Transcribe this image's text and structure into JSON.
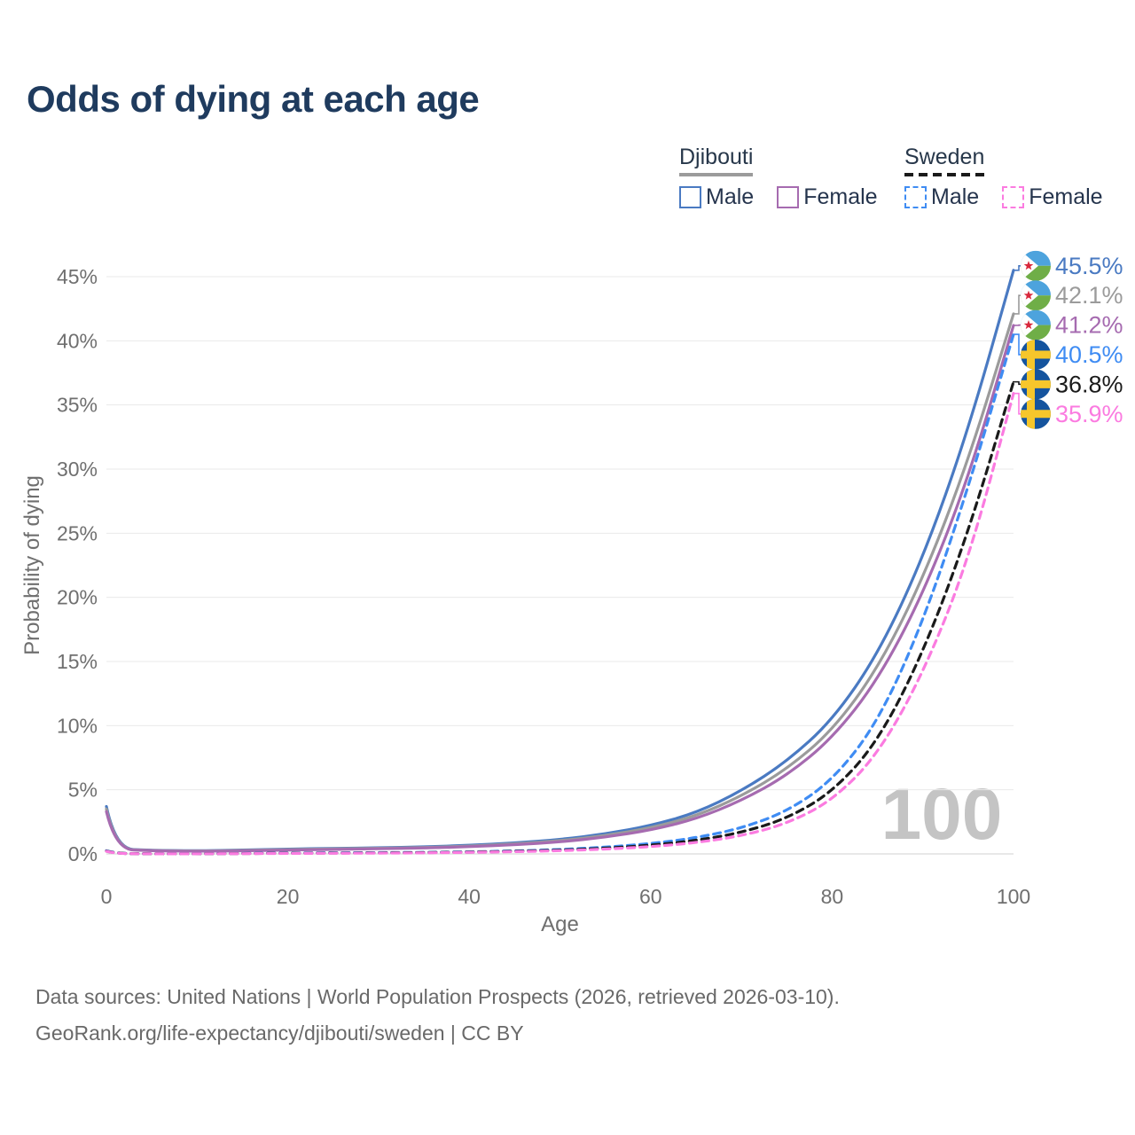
{
  "header": {
    "title": "Odds of dying at each age"
  },
  "legend": {
    "groups": [
      {
        "id": "djibouti",
        "label": "Djibouti",
        "line_style": "solid",
        "underline_color": "#9b9b9b",
        "items": [
          {
            "label": "Male",
            "color": "#4a7ac2",
            "dashed": false
          },
          {
            "label": "Female",
            "color": "#a66bb0",
            "dashed": false
          }
        ]
      },
      {
        "id": "sweden",
        "label": "Sweden",
        "line_style": "dashed",
        "underline_color": "#1a1a1a",
        "items": [
          {
            "label": "Male",
            "color": "#3f8cf3",
            "dashed": true
          },
          {
            "label": "Female",
            "color": "#fb7be0",
            "dashed": true
          }
        ]
      }
    ]
  },
  "chart_data": {
    "type": "line",
    "title": "Odds of dying at each age",
    "xlabel": "Age",
    "ylabel": "Probability of dying",
    "xlim": [
      0,
      100
    ],
    "ylim": [
      0,
      45
    ],
    "x_ticks": [
      0,
      20,
      40,
      60,
      80,
      100
    ],
    "y_ticks_percent": [
      0,
      5,
      10,
      15,
      20,
      25,
      30,
      35,
      40,
      45
    ],
    "grid": true,
    "watermark": "100",
    "legend_position": "top-right",
    "ages": [
      0,
      1,
      5,
      10,
      15,
      20,
      25,
      30,
      35,
      40,
      45,
      50,
      55,
      60,
      65,
      70,
      75,
      80,
      85,
      90,
      95,
      100
    ],
    "series": [
      {
        "id": "djibouti-male",
        "name": "Djibouti Male",
        "country": "Djibouti",
        "sex": "Male",
        "color": "#4a7ac2",
        "dashed": false,
        "flag": "djibouti",
        "end_label": "45.5%",
        "values": [
          3.7,
          0.4,
          0.28,
          0.24,
          0.3,
          0.38,
          0.43,
          0.48,
          0.55,
          0.67,
          0.85,
          1.12,
          1.55,
          2.2,
          3.2,
          4.9,
          7.2,
          10.4,
          15.5,
          23.0,
          33.0,
          45.5
        ]
      },
      {
        "id": "djibouti-both-sexes",
        "name": "Djibouti Both sexes",
        "country": "Djibouti",
        "sex": "Both",
        "color": "#9b9b9b",
        "dashed": false,
        "flag": "djibouti",
        "end_label": "42.1%",
        "values": [
          3.5,
          0.38,
          0.26,
          0.22,
          0.27,
          0.34,
          0.39,
          0.44,
          0.5,
          0.61,
          0.78,
          1.02,
          1.42,
          2.02,
          2.95,
          4.5,
          6.6,
          9.6,
          14.4,
          21.4,
          30.6,
          42.1
        ]
      },
      {
        "id": "djibouti-female",
        "name": "Djibouti Female",
        "country": "Djibouti",
        "sex": "Female",
        "color": "#a66bb0",
        "dashed": false,
        "flag": "djibouti",
        "end_label": "41.2%",
        "values": [
          3.3,
          0.36,
          0.24,
          0.2,
          0.24,
          0.3,
          0.35,
          0.4,
          0.46,
          0.56,
          0.71,
          0.93,
          1.3,
          1.85,
          2.72,
          4.15,
          6.1,
          9.0,
          13.5,
          20.2,
          29.2,
          41.2
        ]
      },
      {
        "id": "sweden-male",
        "name": "Sweden Male",
        "country": "Sweden",
        "sex": "Male",
        "color": "#3f8cf3",
        "dashed": true,
        "flag": "sweden",
        "end_label": "40.5%",
        "values": [
          0.25,
          0.03,
          0.01,
          0.01,
          0.04,
          0.07,
          0.09,
          0.1,
          0.12,
          0.16,
          0.23,
          0.34,
          0.52,
          0.8,
          1.25,
          2.0,
          3.3,
          5.7,
          10.2,
          18.0,
          28.5,
          40.5
        ]
      },
      {
        "id": "sweden-both-sexes",
        "name": "Sweden Both sexes",
        "country": "Sweden",
        "sex": "Both",
        "color": "#1a1a1a",
        "dashed": true,
        "flag": "sweden",
        "end_label": "36.8%",
        "values": [
          0.22,
          0.03,
          0.01,
          0.01,
          0.03,
          0.05,
          0.07,
          0.08,
          0.1,
          0.14,
          0.2,
          0.29,
          0.44,
          0.67,
          1.04,
          1.66,
          2.75,
          4.8,
          8.7,
          15.6,
          25.0,
          36.8
        ]
      },
      {
        "id": "sweden-female",
        "name": "Sweden Female",
        "country": "Sweden",
        "sex": "Female",
        "color": "#fb7be0",
        "dashed": true,
        "flag": "sweden",
        "end_label": "35.9%",
        "values": [
          0.2,
          0.02,
          0.01,
          0.01,
          0.02,
          0.04,
          0.05,
          0.06,
          0.08,
          0.12,
          0.17,
          0.25,
          0.37,
          0.56,
          0.87,
          1.4,
          2.35,
          4.15,
          7.7,
          14.0,
          22.8,
          35.9
        ]
      }
    ],
    "flag_colors": {
      "djibouti": {
        "top": "#4da3dd",
        "bottom": "#6fae47",
        "triangle": "#ffffff",
        "star": "#d8283c"
      },
      "sweden": {
        "field": "#15549e",
        "cross": "#f6c62b"
      }
    },
    "style": {
      "grid_color": "#e9e9e9",
      "axis_line_color": "#d2d2d2",
      "tick_text_color": "#6f6f6f",
      "watermark_color": "#c4c4c4"
    }
  },
  "footer": {
    "line1": "Data sources: United Nations | World Population Prospects (2026, retrieved 2026-03-10).",
    "line2": "GeoRank.org/life-expectancy/djibouti/sweden | CC BY"
  }
}
